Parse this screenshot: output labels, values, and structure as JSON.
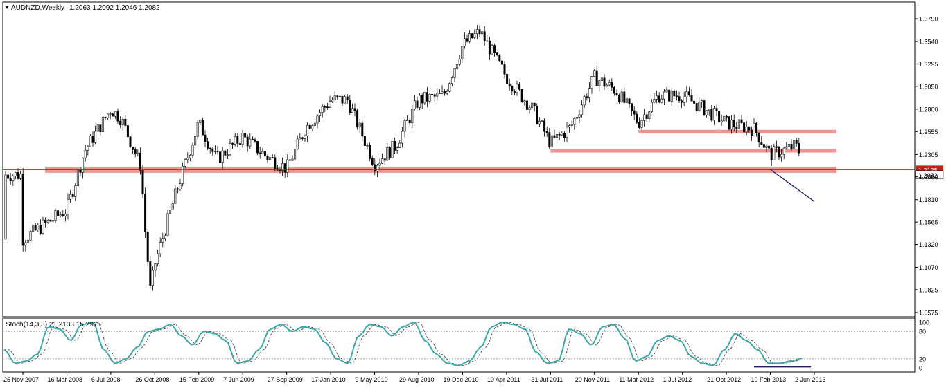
{
  "header": {
    "symbol_timeframe": "AUDNZD,Weekly",
    "ohlc": "1.2063 1.2092 1.2046 1.2082"
  },
  "indicator": {
    "label": "Stoch(14,3,3) 21.2133 15.2976"
  },
  "chart_data": [
    {
      "type": "candlestick",
      "ylim": [
        1.0575,
        1.379
      ],
      "yticks": [
        "1.3790",
        "1.3540",
        "1.3295",
        "1.3050",
        "1.2800",
        "1.2555",
        "1.2305",
        "1.2060",
        "1.1810",
        "1.1565",
        "1.1320",
        "1.1070",
        "1.0825",
        "1.0575"
      ],
      "xticks": [
        "25 Nov 2007",
        "16 Mar 2008",
        "6 Jul 2008",
        "26 Oct 2008",
        "15 Feb 2009",
        "7 Jun 2009",
        "27 Sep 2009",
        "17 Jan 2010",
        "9 May 2010",
        "29 Aug 2010",
        "19 Dec 2010",
        "10 Apr 2011",
        "31 Jul 2011",
        "20 Nov 2011",
        "11 Mar 2012",
        "1 Jul 2012",
        "21 Oct 2012",
        "10 Feb 2013",
        "2 Jun 2013"
      ],
      "price_line": {
        "value": 1.2138,
        "label": "1.2138",
        "color": "#c81e1e"
      },
      "current_price": {
        "value": 1.2082,
        "label": "1.2082"
      },
      "support_resistance_zones": [
        {
          "from": "25 Nov 2007",
          "to": "2 Jun 2013",
          "level": 1.2138
        },
        {
          "from": "31 Jul 2011",
          "to": "2 Jun 2013",
          "level": 1.2345
        },
        {
          "from": "11 Mar 2012",
          "to": "2 Jun 2013",
          "level": 1.2555
        }
      ],
      "trendline": {
        "from": [
          "10 Feb 2013",
          1.214
        ],
        "to": [
          "2 Jun 2013",
          1.179
        ],
        "color": "#1a1a6e"
      },
      "path": [
        [
          "25 Nov 2007",
          1.138
        ],
        [
          "16 Mar 2008",
          1.17
        ],
        [
          "1 May 2008",
          1.235
        ],
        [
          "6 Jul 2008",
          1.28
        ],
        [
          "1 Aug 2008",
          1.27
        ],
        [
          "21 Sep 2008",
          1.217
        ],
        [
          "1 Oct 2008",
          1.15
        ],
        [
          "15 Oct 2008",
          1.08
        ],
        [
          "26 Oct 2008",
          1.11
        ],
        [
          "20 Dec 2008",
          1.19
        ],
        [
          "15 Feb 2009",
          1.265
        ],
        [
          "1 Apr 2009",
          1.225
        ],
        [
          "7 Jun 2009",
          1.25
        ],
        [
          "1 Aug 2009",
          1.23
        ],
        [
          "27 Sep 2009",
          1.215
        ],
        [
          "15 Nov 2009",
          1.26
        ],
        [
          "17 Jan 2010",
          1.29
        ],
        [
          "1 Mar 2010",
          1.29
        ],
        [
          "9 May 2010",
          1.22
        ],
        [
          "1 Jul 2010",
          1.24
        ],
        [
          "29 Aug 2010",
          1.29
        ],
        [
          "1 Nov 2010",
          1.295
        ],
        [
          "19 Dec 2010",
          1.35
        ],
        [
          "1 Feb 2011",
          1.365
        ],
        [
          "10 Apr 2011",
          1.315
        ],
        [
          "15 Jun 2011",
          1.28
        ],
        [
          "31 Jul 2011",
          1.243
        ],
        [
          "20 Sep 2011",
          1.26
        ],
        [
          "20 Nov 2011",
          1.315
        ],
        [
          "15 Jan 2012",
          1.3
        ],
        [
          "11 Mar 2012",
          1.265
        ],
        [
          "1 May 2012",
          1.295
        ],
        [
          "1 Jul 2012",
          1.295
        ],
        [
          "21 Oct 2012",
          1.265
        ],
        [
          "1 Jan 2013",
          1.258
        ],
        [
          "10 Feb 2013",
          1.23
        ],
        [
          "15 Apr 2013",
          1.24
        ],
        [
          "2 Jun 2013",
          1.2082
        ]
      ]
    },
    {
      "type": "line",
      "title": "Stoch(14,3,3) 21.2133 15.2976",
      "ylim": [
        0,
        100
      ],
      "yticks": [
        "100",
        "80",
        "20",
        "0"
      ],
      "levels": [
        80,
        20
      ],
      "series": [
        {
          "name": "%K",
          "color": "#3aa8a8"
        },
        {
          "name": "%D",
          "color": "#333333",
          "style": "dashed"
        }
      ],
      "values_k": [
        40,
        10,
        15,
        30,
        90,
        85,
        60,
        95,
        100,
        40,
        10,
        20,
        45,
        80,
        85,
        95,
        70,
        50,
        80,
        75,
        60,
        10,
        15,
        40,
        85,
        95,
        80,
        90,
        85,
        55,
        20,
        10,
        70,
        95,
        90,
        70,
        90,
        100,
        60,
        30,
        10,
        5,
        15,
        45,
        90,
        100,
        95,
        85,
        35,
        10,
        15,
        85,
        75,
        50,
        90,
        95,
        65,
        15,
        25,
        60,
        70,
        60,
        25,
        10,
        5,
        40,
        75,
        60,
        40,
        10,
        10,
        15,
        21
      ]
    }
  ]
}
